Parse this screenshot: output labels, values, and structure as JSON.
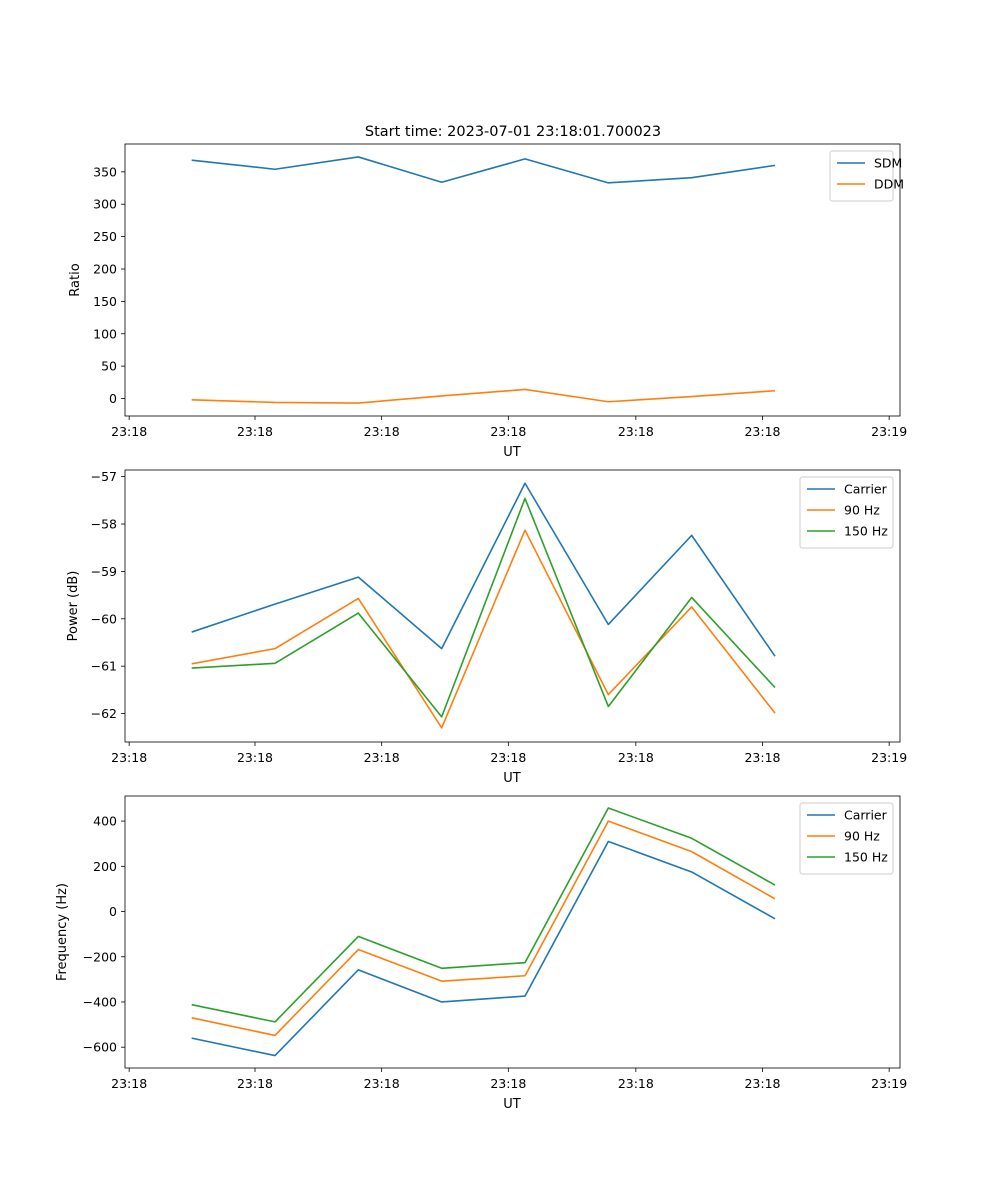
{
  "title": "Start time: 2023-07-01 23:18:01.700023",
  "colors": {
    "blue": "#1f77b4",
    "orange": "#ff7f0e",
    "green": "#2ca02c"
  },
  "chart_data": [
    {
      "type": "line",
      "xlabel": "UT",
      "ylabel": "Ratio",
      "xlim": [
        -0.8,
        8.5
      ],
      "ylim": [
        -27,
        393
      ],
      "x": [
        0,
        1,
        2,
        3,
        4,
        5,
        6,
        7
      ],
      "x_ticks": [
        -0.75,
        0.76,
        2.28,
        3.8,
        5.33,
        6.85,
        8.37
      ],
      "x_tick_labels": [
        "23:18",
        "23:18",
        "23:18",
        "23:18",
        "23:18",
        "23:18",
        "23:19"
      ],
      "y_ticks": [
        0,
        50,
        100,
        150,
        200,
        250,
        300,
        350
      ],
      "y_tick_labels": [
        "0",
        "50",
        "100",
        "150",
        "200",
        "250",
        "300",
        "350"
      ],
      "legend": "top-right",
      "series": [
        {
          "name": "SDM",
          "color": "#1f77b4",
          "values": [
            368,
            354,
            373,
            334,
            370,
            333,
            341,
            360
          ]
        },
        {
          "name": "DDM",
          "color": "#ff7f0e",
          "values": [
            -2,
            -6,
            -7,
            4,
            14,
            -5,
            3,
            12
          ]
        }
      ]
    },
    {
      "type": "line",
      "xlabel": "UT",
      "ylabel": "Power (dB)",
      "xlim": [
        -0.8,
        8.5
      ],
      "ylim": [
        -62.6,
        -56.86
      ],
      "x": [
        0,
        1,
        2,
        3,
        4,
        5,
        6,
        7
      ],
      "x_ticks": [
        -0.75,
        0.76,
        2.28,
        3.8,
        5.33,
        6.85,
        8.37
      ],
      "x_tick_labels": [
        "23:18",
        "23:18",
        "23:18",
        "23:18",
        "23:18",
        "23:18",
        "23:19"
      ],
      "y_ticks": [
        -62,
        -61,
        -60,
        -59,
        -58,
        -57
      ],
      "y_tick_labels": [
        "−62",
        "−61",
        "−60",
        "−59",
        "−58",
        "−57"
      ],
      "legend": "top-right",
      "series": [
        {
          "name": "Carrier",
          "color": "#1f77b4",
          "values": [
            -60.28,
            -59.69,
            -59.12,
            -60.63,
            -57.14,
            -60.12,
            -58.24,
            -60.79
          ]
        },
        {
          "name": "90 Hz",
          "color": "#ff7f0e",
          "values": [
            -60.95,
            -60.63,
            -59.57,
            -62.3,
            -58.13,
            -61.6,
            -59.75,
            -61.99
          ]
        },
        {
          "name": "150 Hz",
          "color": "#2ca02c",
          "values": [
            -61.04,
            -60.94,
            -59.88,
            -62.07,
            -57.46,
            -61.85,
            -59.55,
            -61.45
          ]
        }
      ]
    },
    {
      "type": "line",
      "xlabel": "UT",
      "ylabel": "Frequency (Hz)",
      "xlim": [
        -0.8,
        8.5
      ],
      "ylim": [
        -692,
        511
      ],
      "x": [
        0,
        1,
        2,
        3,
        4,
        5,
        6,
        7
      ],
      "x_ticks": [
        -0.75,
        0.76,
        2.28,
        3.8,
        5.33,
        6.85,
        8.37
      ],
      "x_tick_labels": [
        "23:18",
        "23:18",
        "23:18",
        "23:18",
        "23:18",
        "23:18",
        "23:19"
      ],
      "y_ticks": [
        -600,
        -400,
        -200,
        0,
        200,
        400
      ],
      "y_tick_labels": [
        "−600",
        "−400",
        "−200",
        "0",
        "200",
        "400"
      ],
      "legend": "top-right",
      "series": [
        {
          "name": "Carrier",
          "color": "#1f77b4",
          "values": [
            -560,
            -637,
            -258,
            -400,
            -374,
            310,
            175,
            -32
          ]
        },
        {
          "name": "90 Hz",
          "color": "#ff7f0e",
          "values": [
            -470,
            -548,
            -168,
            -308,
            -284,
            400,
            265,
            56
          ]
        },
        {
          "name": "150 Hz",
          "color": "#2ca02c",
          "values": [
            -412,
            -488,
            -110,
            -251,
            -226,
            458,
            324,
            117
          ]
        }
      ]
    }
  ]
}
